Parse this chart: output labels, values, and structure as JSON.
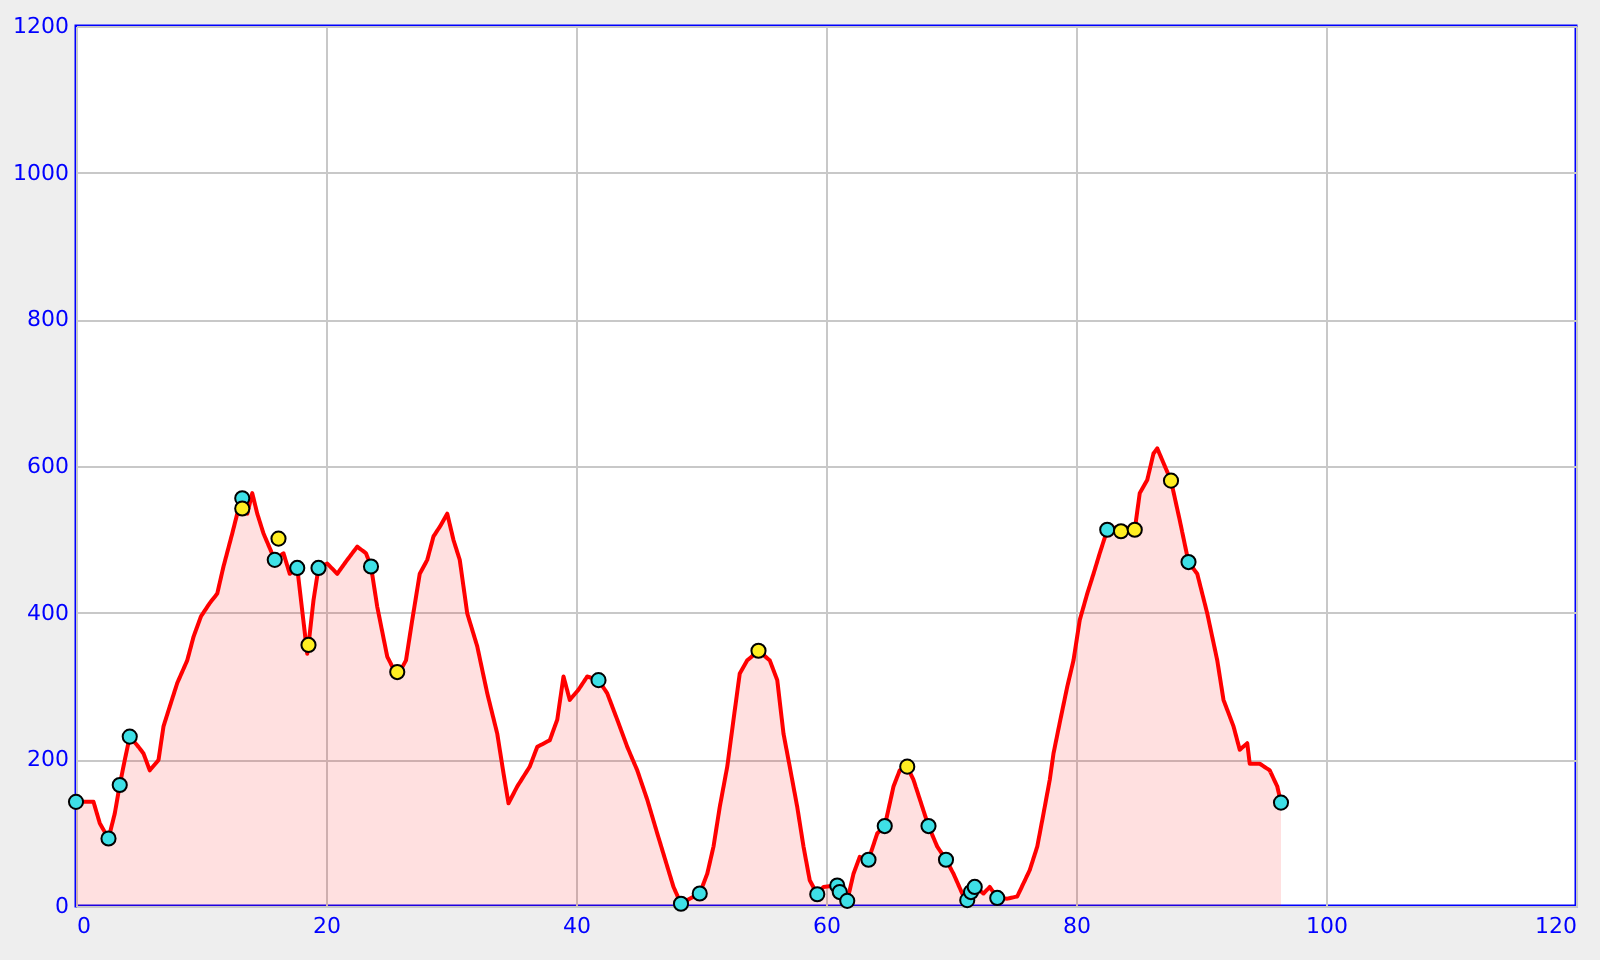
{
  "chart_data": {
    "type": "area",
    "series": [
      {
        "color": "#ff0000",
        "x": [
          0,
          1.4,
          1.9,
          2.6,
          3.1,
          3.5,
          3.9,
          4.3,
          5.0,
          5.4,
          5.9,
          6.6,
          7.0,
          7.5,
          8.1,
          8.9,
          9.4,
          10.0,
          10.7,
          11.3,
          11.8,
          12.5,
          12.9,
          13.3,
          13.7,
          14.1,
          14.5,
          15.0,
          15.9,
          16.6,
          17.1,
          17.7,
          18.0,
          18.5,
          18.6,
          19.0,
          19.4,
          20.1,
          20.9,
          21.7,
          22.5,
          23.2,
          23.6,
          24.1,
          24.9,
          25.7,
          26.4,
          26.9,
          27.5,
          28.1,
          28.6,
          29.1,
          29.7,
          30.2,
          30.7,
          31.3,
          32.1,
          32.9,
          33.7,
          34.2,
          34.6,
          35.3,
          36.3,
          36.9,
          37.9,
          38.5,
          39.0,
          39.5,
          40.2,
          40.9,
          41.8,
          42.5,
          43.3,
          44.1,
          44.9,
          45.7,
          46.5,
          47.3,
          47.8,
          48.4,
          49.1,
          49.9,
          50.5,
          51.0,
          51.5,
          52.1,
          52.6,
          53.1,
          53.7,
          54.6,
          55.5,
          56.1,
          56.6,
          57.1,
          57.7,
          58.2,
          58.7,
          59.3,
          59.8,
          60.9,
          61.1,
          61.7,
          62.2,
          62.7,
          63.4,
          64.1,
          64.7,
          65.4,
          65.9,
          66.5,
          67.0,
          68.2,
          68.9,
          69.6,
          70.2,
          70.9,
          71.3,
          71.6,
          71.9,
          72.6,
          73.1,
          73.7,
          74.5,
          75.3,
          75.8,
          76.3,
          76.9,
          77.4,
          77.9,
          78.2,
          78.7,
          79.3,
          79.8,
          80.3,
          80.9,
          81.4,
          81.9,
          82.5,
          83.6,
          84.7,
          85.1,
          85.7,
          86.2,
          86.5,
          87.0,
          87.6,
          88.3,
          89.0,
          89.7,
          90.5,
          91.3,
          91.8,
          92.6,
          93.1,
          93.7,
          93.9,
          94.7,
          95.5,
          96.1,
          96.4
        ],
        "values": [
          142,
          142,
          113,
          92,
          126,
          165,
          199,
          231,
          217,
          208,
          185,
          199,
          245,
          272,
          304,
          335,
          367,
          395,
          413,
          426,
          463,
          508,
          535,
          556,
          535,
          563,
          535,
          508,
          472,
          481,
          453,
          461,
          417,
          344,
          356,
          417,
          461,
          467,
          453,
          472,
          490,
          481,
          463,
          408,
          340,
          313,
          335,
          390,
          453,
          472,
          504,
          517,
          535,
          499,
          472,
          399,
          354,
          290,
          235,
          181,
          140,
          163,
          190,
          217,
          226,
          254,
          313,
          281,
          295,
          313,
          308,
          290,
          254,
          217,
          185,
          145,
          99,
          54,
          26,
          3,
          10,
          17,
          44,
          81,
          135,
          190,
          254,
          317,
          335,
          348,
          335,
          308,
          235,
          190,
          135,
          81,
          35,
          16,
          26,
          28,
          19,
          7,
          44,
          67,
          63,
          99,
          109,
          163,
          185,
          190,
          172,
          109,
          81,
          63,
          44,
          17,
          8,
          19,
          26,
          17,
          26,
          11,
          10,
          13,
          31,
          49,
          81,
          126,
          172,
          208,
          250,
          299,
          335,
          390,
          426,
          453,
          481,
          513,
          518,
          513,
          563,
          581,
          617,
          624,
          604,
          580,
          526,
          469,
          453,
          399,
          335,
          281,
          245,
          213,
          222,
          194,
          194,
          185,
          163,
          141
        ]
      },
      {
        "type": "scatter",
        "color": "#3ee0e6",
        "marker": "circle",
        "x": [
          0,
          2.6,
          3.5,
          4.3,
          13.3,
          15.9,
          17.7,
          19.4,
          23.6,
          41.8,
          48.4,
          49.9,
          59.3,
          60.9,
          61.1,
          61.7,
          63.4,
          64.7,
          68.2,
          69.6,
          71.3,
          71.6,
          71.9,
          73.7,
          82.5,
          89.0,
          96.4
        ],
        "values": [
          142,
          92,
          165,
          231,
          556,
          472,
          461,
          461,
          463,
          308,
          3,
          17,
          16,
          28,
          19,
          7,
          63,
          109,
          109,
          63,
          8,
          19,
          26,
          11,
          513,
          469,
          141
        ]
      },
      {
        "type": "scatter",
        "color": "#ffee22",
        "marker": "circle",
        "x": [
          13.3,
          16.2,
          18.6,
          25.7,
          54.6,
          66.5,
          83.6,
          84.7,
          87.6
        ],
        "values": [
          542,
          501,
          356,
          319,
          348,
          190,
          511,
          513,
          580
        ]
      }
    ],
    "xlim": [
      0,
      120
    ],
    "ylim": [
      0,
      1200
    ],
    "xticks": [
      0,
      20,
      40,
      60,
      80,
      100,
      120
    ],
    "yticks": [
      0,
      200,
      400,
      600,
      800,
      1000,
      1200
    ],
    "grid": true
  }
}
